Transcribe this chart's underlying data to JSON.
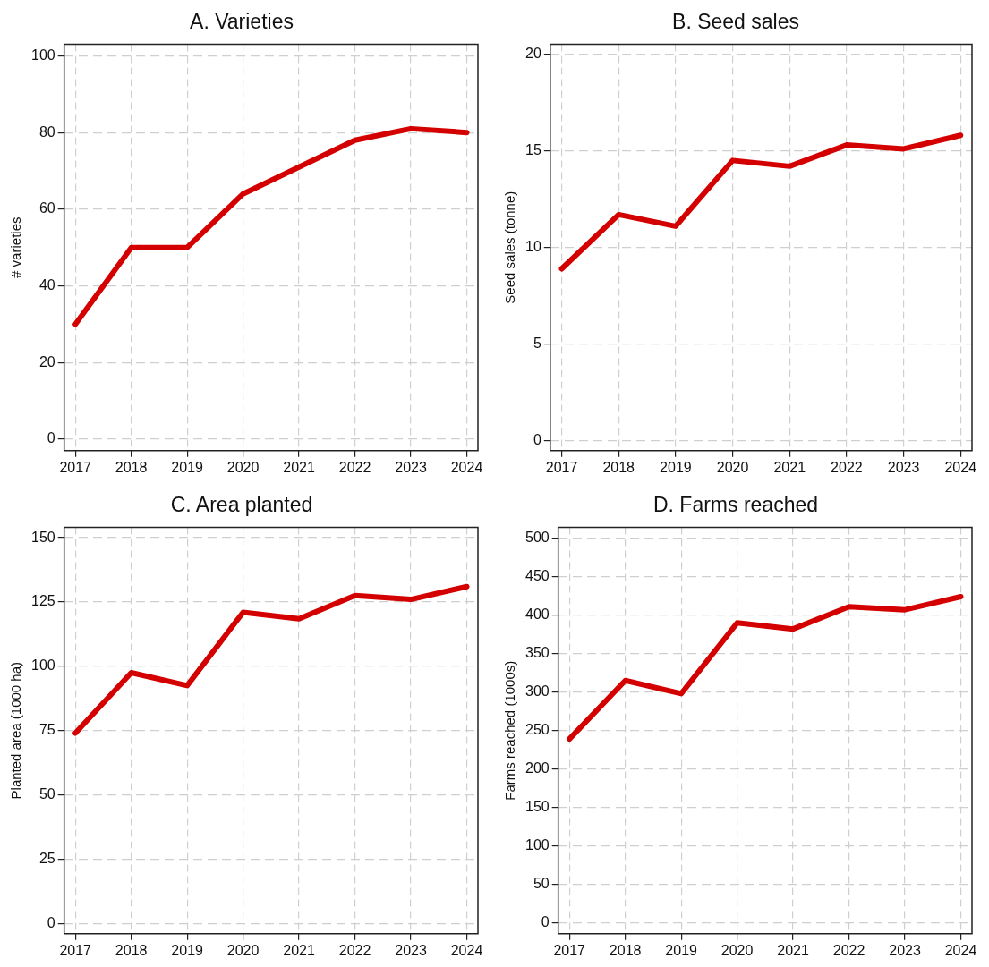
{
  "chart_data": [
    {
      "type": "line",
      "title": "A. Varieties",
      "ylabel": "# varieties",
      "x": [
        2017,
        2018,
        2019,
        2020,
        2021,
        2022,
        2023,
        2024
      ],
      "xlim": [
        2016.8,
        2024.2
      ],
      "xticks": [
        2017,
        2018,
        2019,
        2020,
        2021,
        2022,
        2023,
        2024
      ],
      "ylim": [
        -3,
        103
      ],
      "yticks": [
        0,
        20,
        40,
        60,
        80,
        100
      ],
      "grid": true,
      "series": [
        {
          "color": "#d40000",
          "values": [
            30,
            50,
            50,
            64,
            71,
            78,
            81,
            80
          ]
        }
      ]
    },
    {
      "type": "line",
      "title": "B. Seed sales",
      "ylabel": "Seed sales (tonne)",
      "x": [
        2017,
        2018,
        2019,
        2020,
        2021,
        2022,
        2023,
        2024
      ],
      "xlim": [
        2016.8,
        2024.2
      ],
      "xticks": [
        2017,
        2018,
        2019,
        2020,
        2021,
        2022,
        2023,
        2024
      ],
      "ylim": [
        -0.5,
        20.5
      ],
      "yticks": [
        0,
        5,
        10,
        15,
        20
      ],
      "grid": true,
      "series": [
        {
          "color": "#d40000",
          "values": [
            8.9,
            11.7,
            11.1,
            14.5,
            14.2,
            15.3,
            15.1,
            15.8
          ]
        }
      ]
    },
    {
      "type": "line",
      "title": "C. Area planted",
      "ylabel": "Planted area (1000 ha)",
      "x": [
        2017,
        2018,
        2019,
        2020,
        2021,
        2022,
        2023,
        2024
      ],
      "xlim": [
        2016.8,
        2024.2
      ],
      "xticks": [
        2017,
        2018,
        2019,
        2020,
        2021,
        2022,
        2023,
        2024
      ],
      "ylim": [
        -4,
        154
      ],
      "yticks": [
        0,
        25,
        50,
        75,
        100,
        125,
        150
      ],
      "grid": true,
      "series": [
        {
          "color": "#d40000",
          "values": [
            74,
            97.5,
            92.5,
            121,
            118.5,
            127.5,
            126,
            131
          ]
        }
      ]
    },
    {
      "type": "line",
      "title": "D. Farms reached",
      "ylabel": "Farms reached (1000s)",
      "x": [
        2017,
        2018,
        2019,
        2020,
        2021,
        2022,
        2023,
        2024
      ],
      "xlim": [
        2016.8,
        2024.2
      ],
      "xticks": [
        2017,
        2018,
        2019,
        2020,
        2021,
        2022,
        2023,
        2024
      ],
      "ylim": [
        -14,
        514
      ],
      "yticks": [
        0,
        50,
        100,
        150,
        200,
        250,
        300,
        350,
        400,
        450,
        500
      ],
      "grid": true,
      "series": [
        {
          "color": "#d40000",
          "values": [
            239,
            315,
            298,
            390,
            382,
            411,
            407,
            424
          ]
        }
      ]
    }
  ]
}
